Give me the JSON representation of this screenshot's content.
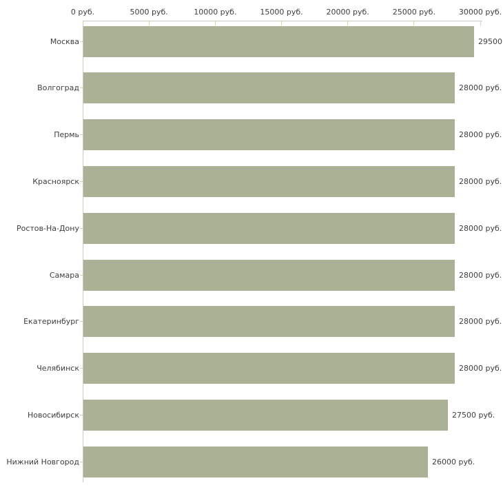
{
  "chart_data": {
    "type": "bar",
    "orientation": "horizontal",
    "categories": [
      "Москва",
      "Волгоград",
      "Пермь",
      "Красноярск",
      "Ростов-На-Дону",
      "Самара",
      "Екатеринбург",
      "Челябинск",
      "Новосибирск",
      "Нижний Новгород"
    ],
    "values": [
      29500,
      28000,
      28000,
      28000,
      28000,
      28000,
      28000,
      28000,
      27500,
      26000
    ],
    "bar_labels": [
      "29500",
      "28000 руб.",
      "28000 руб.",
      "28000 руб.",
      "28000 руб.",
      "28000 руб.",
      "28000 руб.",
      "28000 руб.",
      "27500 руб.",
      "26000 руб."
    ],
    "x_axis": {
      "tick_values": [
        0,
        5000,
        10000,
        15000,
        20000,
        25000,
        30000
      ],
      "tick_labels": [
        "0 руб.",
        "5000 руб.",
        "10000 руб.",
        "15000 руб.",
        "20000 руб.",
        "25000 руб.",
        "30000 руб."
      ],
      "range": [
        0,
        30000
      ]
    },
    "grid": false,
    "legend": false,
    "colors": {
      "bar": "#abb194",
      "axis_line": "#c9c9c1",
      "tick_mark": "#d6d2b4",
      "text": "#3d3d3d",
      "background": "#ffffff"
    }
  }
}
